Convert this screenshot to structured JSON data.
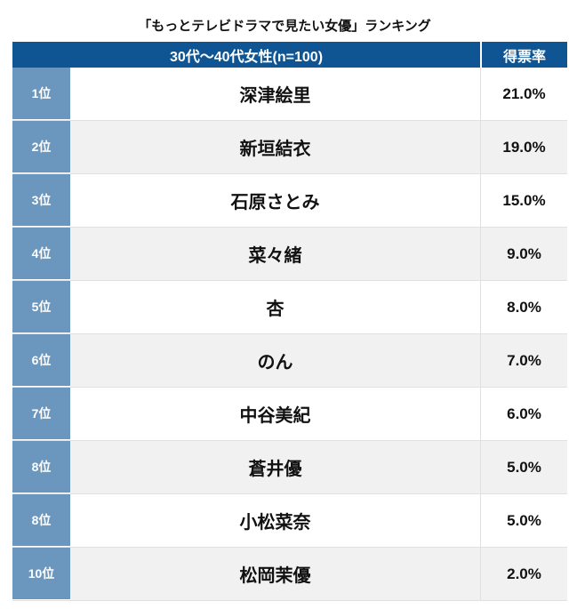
{
  "title": "「もっとテレビドラマで見たい女優」ランキング",
  "header": {
    "group": "30代〜40代女性(n=100)",
    "rate": "得票率"
  },
  "rows": [
    {
      "rank": "1位",
      "name": "深津絵里",
      "rate": "21.0%"
    },
    {
      "rank": "2位",
      "name": "新垣結衣",
      "rate": "19.0%"
    },
    {
      "rank": "3位",
      "name": "石原さとみ",
      "rate": "15.0%"
    },
    {
      "rank": "4位",
      "name": "菜々緒",
      "rate": "9.0%"
    },
    {
      "rank": "5位",
      "name": "杏",
      "rate": "8.0%"
    },
    {
      "rank": "6位",
      "name": "のん",
      "rate": "7.0%"
    },
    {
      "rank": "7位",
      "name": "中谷美紀",
      "rate": "6.0%"
    },
    {
      "rank": "8位",
      "name": "蒼井優",
      "rate": "5.0%"
    },
    {
      "rank": "8位",
      "name": "小松菜奈",
      "rate": "5.0%"
    },
    {
      "rank": "10位",
      "name": "松岡茉優",
      "rate": "2.0%"
    }
  ]
}
